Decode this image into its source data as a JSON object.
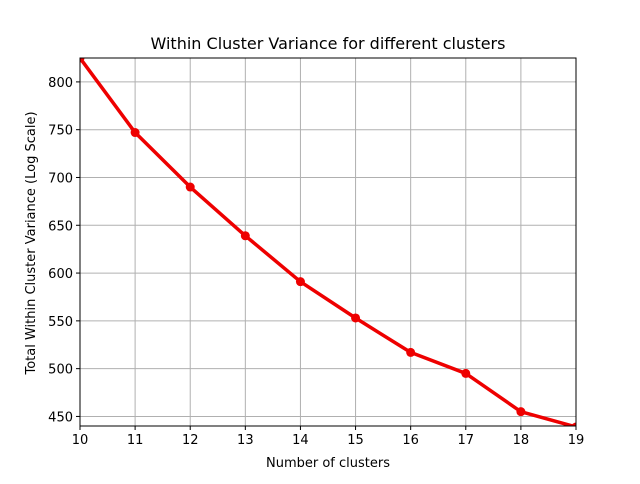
{
  "chart_data": {
    "type": "line",
    "title": "Within Cluster Variance for different clusters",
    "xlabel": "Number of clusters",
    "ylabel": "Total Within Cluster Variance (Log Scale)",
    "x": [
      10,
      11,
      12,
      13,
      14,
      15,
      16,
      17,
      18,
      19
    ],
    "series": [
      {
        "values": [
          825,
          747,
          690,
          639,
          591,
          553,
          517,
          495,
          455,
          439
        ]
      }
    ],
    "xlim": [
      10,
      19
    ],
    "ylim": [
      440,
      825
    ],
    "xticks": [
      "10",
      "11",
      "12",
      "13",
      "14",
      "15",
      "16",
      "17",
      "18",
      "19"
    ],
    "yticks": [
      "450",
      "500",
      "550",
      "600",
      "650",
      "700",
      "750",
      "800"
    ],
    "grid": true,
    "line_color": "#ee0000",
    "grid_color": "#b0b0b0"
  }
}
